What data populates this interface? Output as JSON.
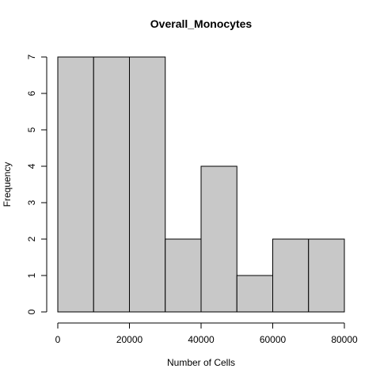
{
  "chart_data": {
    "type": "bar",
    "title": "Overall_Monocytes",
    "xlabel": "Number of Cells",
    "ylabel": "Frequency",
    "bins": [
      {
        "start": 0,
        "end": 10000,
        "count": 7
      },
      {
        "start": 10000,
        "end": 20000,
        "count": 7
      },
      {
        "start": 20000,
        "end": 30000,
        "count": 7
      },
      {
        "start": 30000,
        "end": 40000,
        "count": 2
      },
      {
        "start": 40000,
        "end": 50000,
        "count": 4
      },
      {
        "start": 50000,
        "end": 60000,
        "count": 1
      },
      {
        "start": 60000,
        "end": 70000,
        "count": 2
      },
      {
        "start": 70000,
        "end": 80000,
        "count": 2
      }
    ],
    "x_ticks": [
      0,
      20000,
      40000,
      60000,
      80000
    ],
    "y_ticks": [
      0,
      1,
      2,
      3,
      4,
      5,
      6,
      7
    ],
    "xlim": [
      0,
      80000
    ],
    "ylim": [
      0,
      7
    ],
    "bar_color": "#c8c8c8",
    "grid": false
  }
}
